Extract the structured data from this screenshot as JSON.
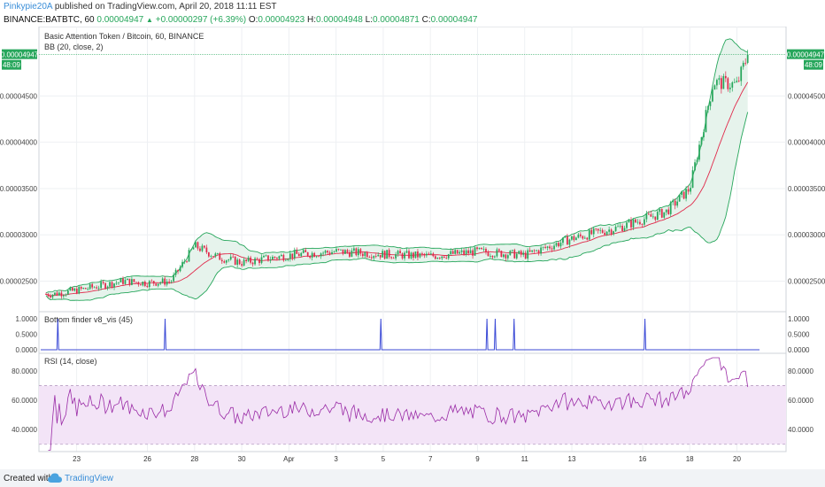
{
  "header": {
    "author": "Pinkypie20A",
    "published_text": " published on TradingView.com, April 20, 2018 11:11 EST",
    "symbol": "BINANCE:BATBTC, 60",
    "last": "0.00004947",
    "change_arrow": "▲",
    "change": "+0.00000297 (+6.39%)",
    "o_label": "O:",
    "o_val": "0.00004923",
    "h_label": "H:",
    "h_val": "0.00004948",
    "l_label": "L:",
    "l_val": "0.00004871",
    "c_label": "C:",
    "c_val": "0.00004947"
  },
  "price_pane": {
    "title": "Basic Attention Token / Bitcoin, 60, BINANCE",
    "indicator": "BB (20, close, 2)",
    "last_price_tag": "0.00004947",
    "countdown_tag": "48:09"
  },
  "bottom_pane": {
    "title": "Bottom finder v8_vis (45)"
  },
  "rsi_pane": {
    "title": "RSI (14, close)"
  },
  "footer": {
    "created_with": "Created with",
    "brand": "TradingView"
  },
  "colors": {
    "up": "#26a65b",
    "down": "#e0294a",
    "bb_band": "#26a65b",
    "bb_basis": "#e0294a",
    "bb_fill": "#e6f3ec",
    "finder": "#3b4ad6",
    "rsi": "#9a2ba6",
    "rsi_band": "#f3e4f7",
    "grid": "#eef0f3",
    "last_line": "#26a65b"
  },
  "chart_data": [
    {
      "type": "candlestick",
      "title": "Basic Attention Token / Bitcoin, 60, BINANCE",
      "x_ticks": [
        "23",
        "26",
        "28",
        "30",
        "Apr",
        "3",
        "5",
        "7",
        "9",
        "11",
        "13",
        "16",
        "18",
        "20"
      ],
      "y_ticks": [
        "0.00002500",
        "0.00003000",
        "0.00003500",
        "0.00004000",
        "0.00004500"
      ],
      "y_range": [
        2.17e-05,
        5.25e-05
      ],
      "x_range": [
        "Mar 22",
        "Apr 20"
      ],
      "last_price": 4.947e-05,
      "trend_points": [
        {
          "x": "Mar 22",
          "y": 2.36e-05
        },
        {
          "x": "Mar 23",
          "y": 2.4e-05
        },
        {
          "x": "Mar 25",
          "y": 2.5e-05
        },
        {
          "x": "Mar 26",
          "y": 2.48e-05
        },
        {
          "x": "Mar 27",
          "y": 2.5e-05
        },
        {
          "x": "Mar 28",
          "y": 2.88e-05
        },
        {
          "x": "Mar 29",
          "y": 2.76e-05
        },
        {
          "x": "Mar 30",
          "y": 2.7e-05
        },
        {
          "x": "Apr 1",
          "y": 2.78e-05
        },
        {
          "x": "Apr 3",
          "y": 2.82e-05
        },
        {
          "x": "Apr 5",
          "y": 2.79e-05
        },
        {
          "x": "Apr 7",
          "y": 2.77e-05
        },
        {
          "x": "Apr 9",
          "y": 2.82e-05
        },
        {
          "x": "Apr 11",
          "y": 2.78e-05
        },
        {
          "x": "Apr 13",
          "y": 2.96e-05
        },
        {
          "x": "Apr 15",
          "y": 3.08e-05
        },
        {
          "x": "Apr 17",
          "y": 3.25e-05
        },
        {
          "x": "Apr 18",
          "y": 3.5e-05
        },
        {
          "x": "Apr 19",
          "y": 4.65e-05
        },
        {
          "x": "Apr 20",
          "y": 4.62e-05
        },
        {
          "x": "Apr 20 11:00",
          "y": 4.947e-05
        }
      ],
      "indicator": "BB (20, close, 2)"
    },
    {
      "type": "line",
      "title": "Bottom finder v8_vis (45)",
      "y_ticks": [
        "0.0000",
        "0.5000",
        "1.0000"
      ],
      "y_range": [
        0,
        1
      ],
      "spikes_at": [
        "Mar 22",
        "Mar 27",
        "Apr 5",
        "Apr 9",
        "Apr 9",
        "Apr 10",
        "Apr 16"
      ],
      "spike_value": 1
    },
    {
      "type": "line",
      "title": "RSI (14, close)",
      "y_ticks": [
        "40.0000",
        "60.0000",
        "80.0000"
      ],
      "y_range": [
        25,
        92
      ],
      "band": [
        30,
        70
      ],
      "last": 69,
      "peak": 89
    }
  ]
}
